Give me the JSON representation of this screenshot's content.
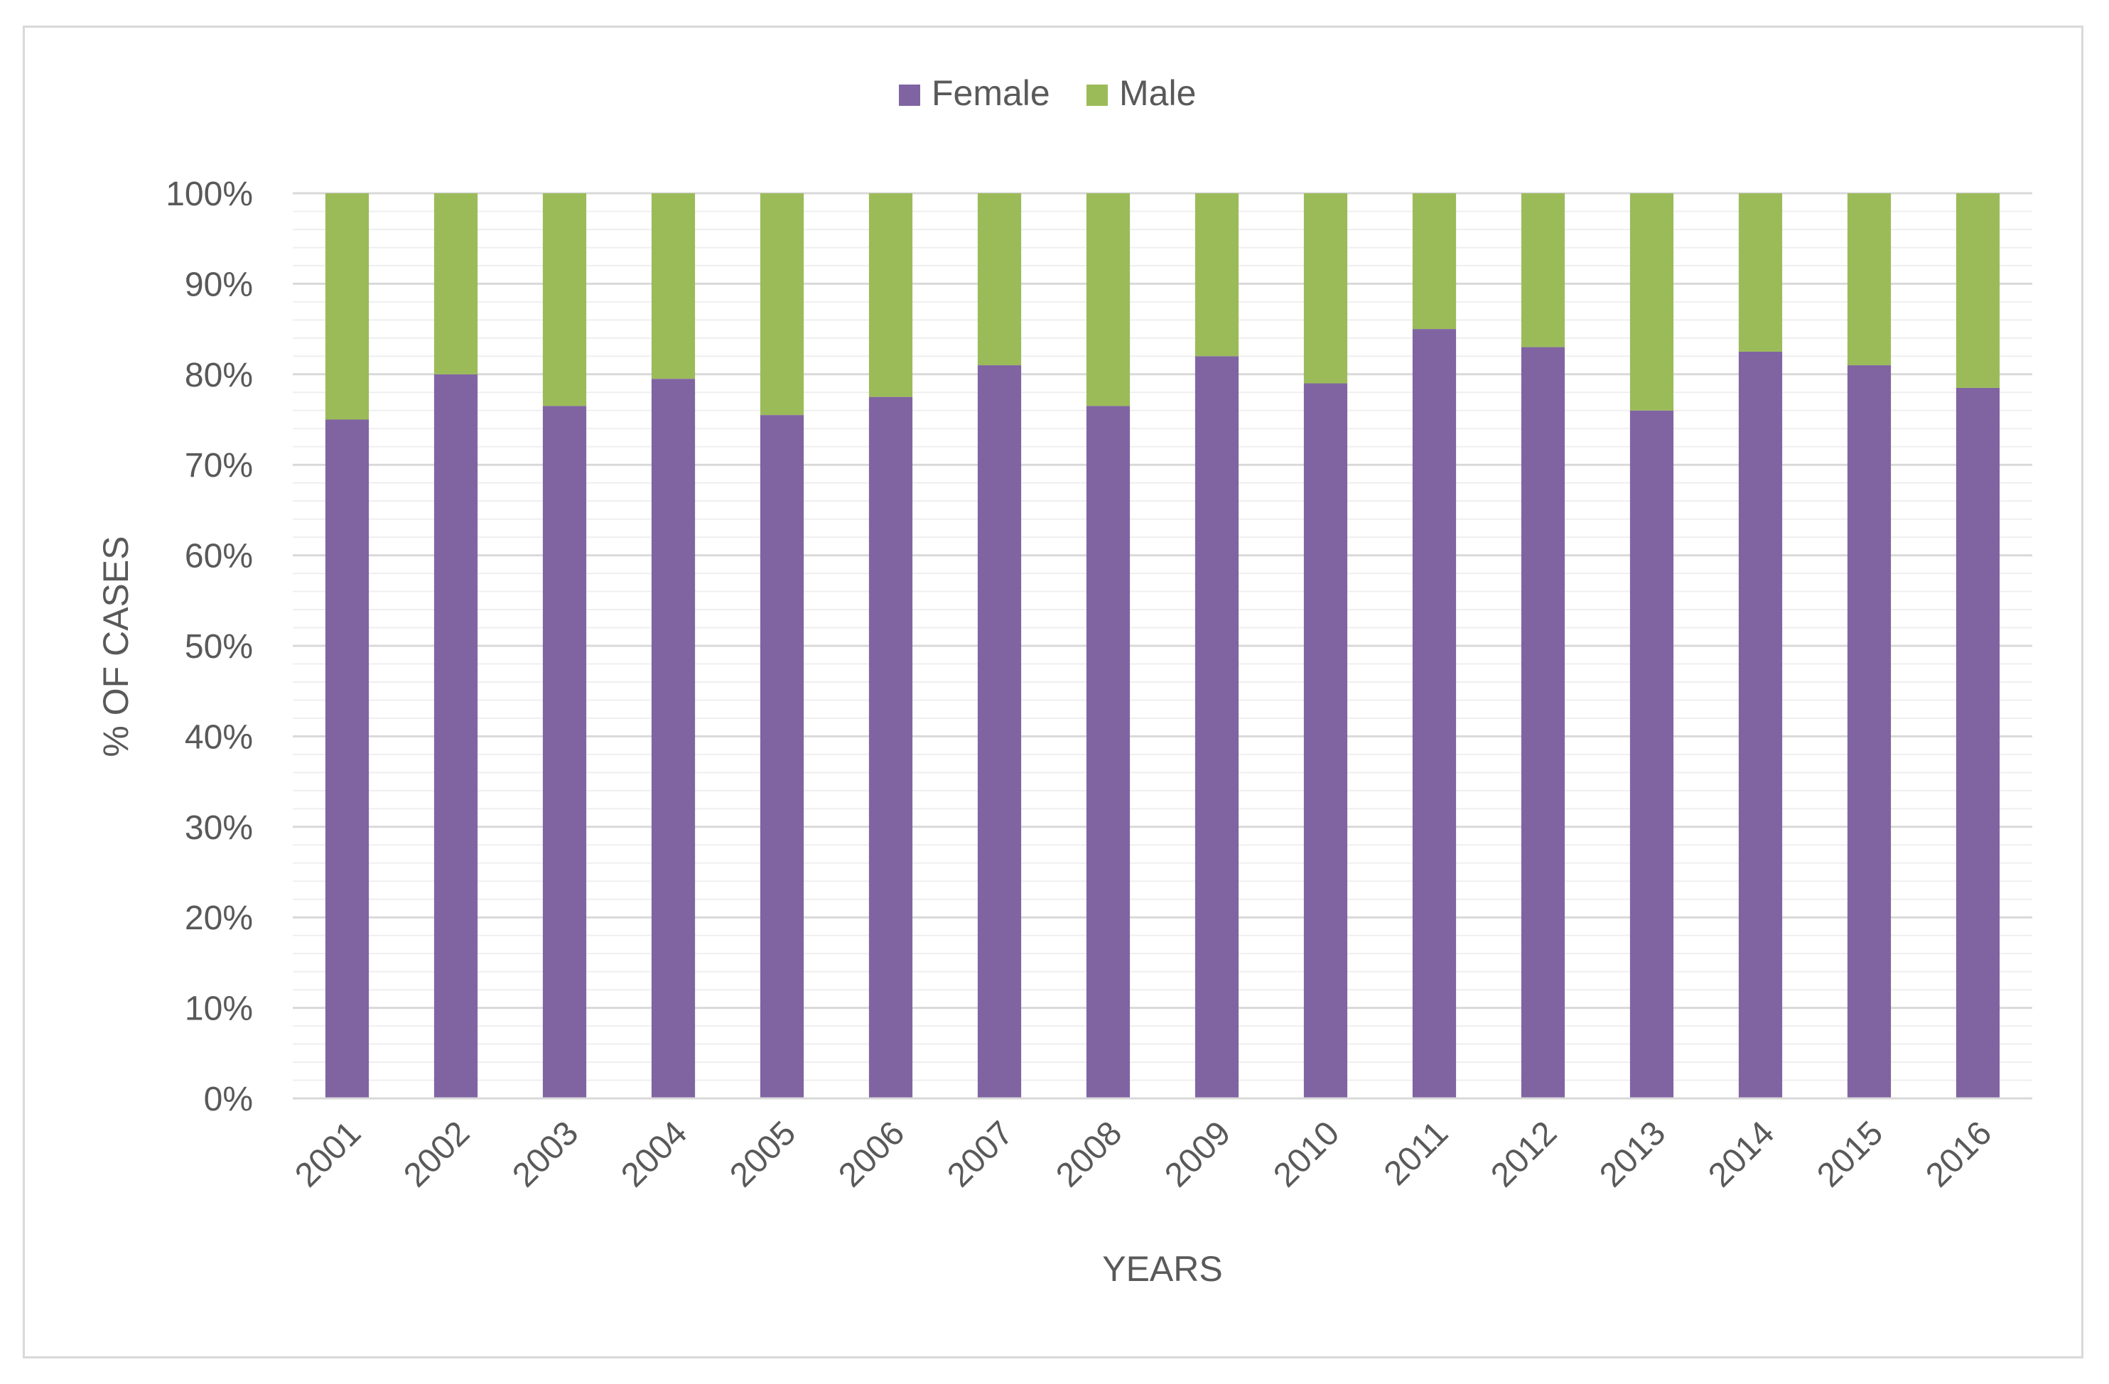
{
  "chart_data": {
    "type": "bar",
    "stacked": true,
    "categories": [
      "2001",
      "2002",
      "2003",
      "2004",
      "2005",
      "2006",
      "2007",
      "2008",
      "2009",
      "2010",
      "2011",
      "2012",
      "2013",
      "2014",
      "2015",
      "2016"
    ],
    "series": [
      {
        "name": "Female",
        "color": "#8064a2",
        "values": [
          75,
          80,
          76.5,
          79.5,
          75.5,
          77.5,
          81,
          76.5,
          82,
          79,
          85,
          83,
          76,
          82.5,
          81,
          78.5
        ]
      },
      {
        "name": "Male",
        "color": "#9bbb59",
        "values": [
          25,
          20,
          23.5,
          20.5,
          24.5,
          22.5,
          19,
          23.5,
          18,
          21,
          15,
          17,
          24,
          17.5,
          19,
          21.5
        ]
      }
    ],
    "title": "",
    "xlabel": "YEARS",
    "ylabel": "% OF CASES",
    "ylim": [
      0,
      100
    ],
    "yticks": [
      "0%",
      "10%",
      "20%",
      "30%",
      "40%",
      "50%",
      "60%",
      "70%",
      "80%",
      "90%",
      "100%"
    ],
    "legend": "top-center",
    "grid": true
  }
}
